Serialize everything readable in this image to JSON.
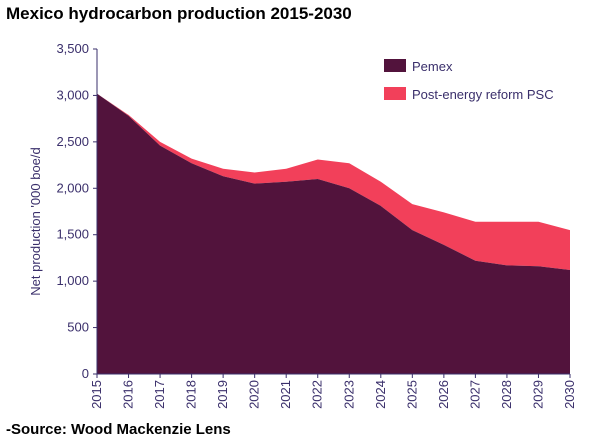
{
  "source": "-Source: Wood Mackenzie Lens",
  "colors": {
    "pemex": "#52133c",
    "psc": "#f2405a",
    "axis": "#3a2f6b"
  },
  "chart_data": {
    "type": "area",
    "stacked": true,
    "title": "Mexico hydrocarbon production 2015-2030",
    "ylabel": "Net production '000 boe/d",
    "xlabel": "",
    "ylim": [
      0,
      3500
    ],
    "yticks": [
      0,
      500,
      1000,
      1500,
      2000,
      2500,
      3000,
      3500
    ],
    "ytick_labels": [
      "0",
      "500",
      "1,000",
      "1,500",
      "2,000",
      "2,500",
      "3,000",
      "3,500"
    ],
    "x": [
      "2015",
      "2016",
      "2017",
      "2018",
      "2019",
      "2020",
      "2021",
      "2022",
      "2023",
      "2024",
      "2025",
      "2026",
      "2027",
      "2028",
      "2029",
      "2030"
    ],
    "legend_position": "top-right",
    "grid": false,
    "series": [
      {
        "name": "Pemex",
        "values": [
          3020,
          2780,
          2460,
          2270,
          2130,
          2050,
          2070,
          2100,
          2000,
          1810,
          1550,
          1390,
          1220,
          1170,
          1160,
          1120
        ]
      },
      {
        "name": "Post-energy reform PSC",
        "values": [
          0,
          10,
          40,
          50,
          80,
          120,
          140,
          210,
          270,
          260,
          280,
          350,
          420,
          470,
          480,
          430
        ]
      }
    ]
  }
}
